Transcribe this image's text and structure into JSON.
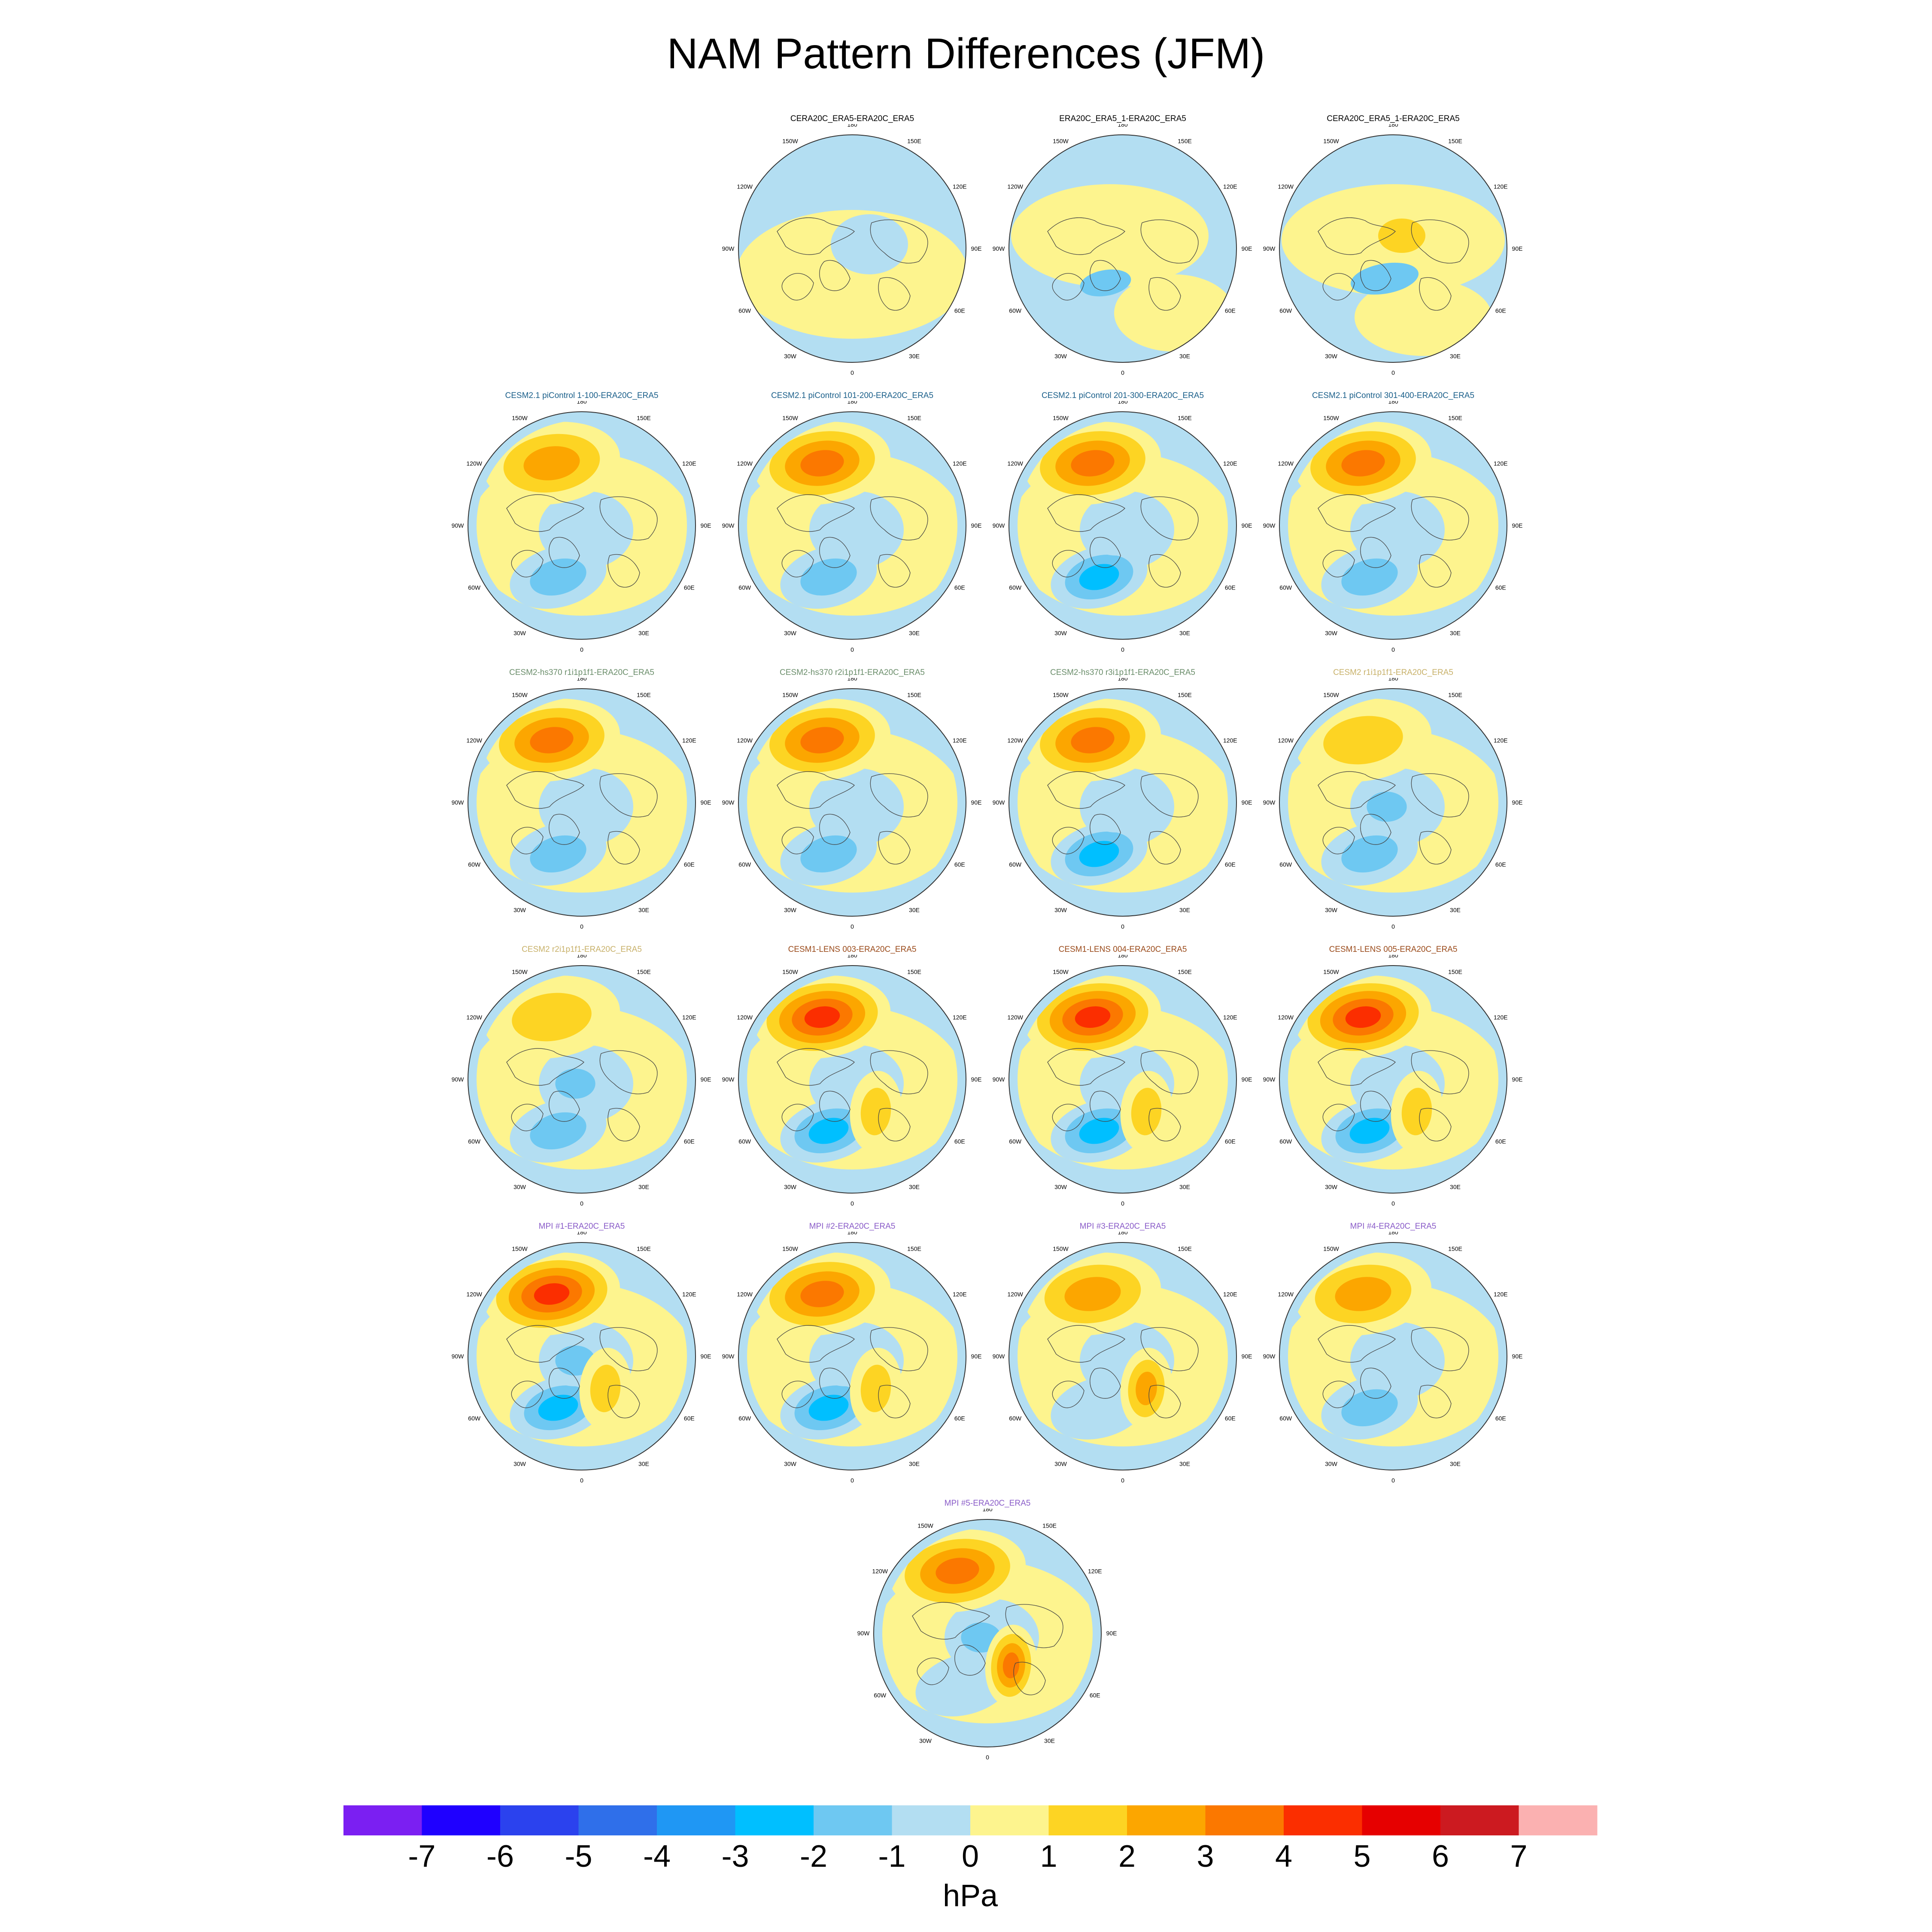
{
  "title": "NAM Pattern Differences (JFM)",
  "lon_labels": [
    "180",
    "150E",
    "120E",
    "90E",
    "60E",
    "30E",
    "0",
    "30W",
    "60W",
    "90W",
    "120W",
    "150W"
  ],
  "title_colors": {
    "obs": "#000000",
    "cesm21": "#1a5f8a",
    "hs370": "#6b8e6b",
    "cesm2": "#c8b16a",
    "lens": "#9a4a1a",
    "mpi": "#8a5cc8"
  },
  "panels": [
    {
      "title": "CERA20C_ERA5-ERA20C_ERA5",
      "group": "obs",
      "pattern": "obs1"
    },
    {
      "title": "ERA20C_ERA5_1-ERA20C_ERA5",
      "group": "obs",
      "pattern": "obs2"
    },
    {
      "title": "CERA20C_ERA5_1-ERA20C_ERA5",
      "group": "obs",
      "pattern": "obs3"
    },
    {
      "title": "CESM2.1 piControl 1-100-ERA20C_ERA5",
      "group": "cesm21",
      "pattern": "model",
      "h": 3,
      "a": -2,
      "b": 0,
      "c": 0
    },
    {
      "title": "CESM2.1 piControl 101-200-ERA20C_ERA5",
      "group": "cesm21",
      "pattern": "model",
      "h": 4,
      "a": -2,
      "b": -1,
      "c": 0
    },
    {
      "title": "CESM2.1 piControl 201-300-ERA20C_ERA5",
      "group": "cesm21",
      "pattern": "model",
      "h": 4,
      "a": -3,
      "b": -1,
      "c": 0
    },
    {
      "title": "CESM2.1 piControl 301-400-ERA20C_ERA5",
      "group": "cesm21",
      "pattern": "model",
      "h": 4,
      "a": -2,
      "b": -1,
      "c": 0
    },
    {
      "title": "CESM2-hs370 r1i1p1f1-ERA20C_ERA5",
      "group": "hs370",
      "pattern": "model",
      "h": 4,
      "a": -2,
      "b": 0,
      "c": 0
    },
    {
      "title": "CESM2-hs370 r2i1p1f1-ERA20C_ERA5",
      "group": "hs370",
      "pattern": "model",
      "h": 4,
      "a": -2,
      "b": -1,
      "c": 0
    },
    {
      "title": "CESM2-hs370 r3i1p1f1-ERA20C_ERA5",
      "group": "hs370",
      "pattern": "model",
      "h": 4,
      "a": -3,
      "b": -1,
      "c": 0
    },
    {
      "title": "CESM2 r1i1p1f1-ERA20C_ERA5",
      "group": "cesm2",
      "pattern": "model",
      "h": 2,
      "a": -2,
      "b": -2,
      "c": 0
    },
    {
      "title": "CESM2 r2i1p1f1-ERA20C_ERA5",
      "group": "cesm2",
      "pattern": "model",
      "h": 2,
      "a": -2,
      "b": -2,
      "c": 0
    },
    {
      "title": "CESM1-LENS 003-ERA20C_ERA5",
      "group": "lens",
      "pattern": "model",
      "h": 5,
      "a": -3,
      "b": 0,
      "c": 2
    },
    {
      "title": "CESM1-LENS 004-ERA20C_ERA5",
      "group": "lens",
      "pattern": "model",
      "h": 5,
      "a": -3,
      "b": 0,
      "c": 2
    },
    {
      "title": "CESM1-LENS 005-ERA20C_ERA5",
      "group": "lens",
      "pattern": "model",
      "h": 5,
      "a": -3,
      "b": 0,
      "c": 2
    },
    {
      "title": "MPI #1-ERA20C_ERA5",
      "group": "mpi",
      "pattern": "model",
      "h": 5,
      "a": -3,
      "b": -2,
      "c": 2
    },
    {
      "title": "MPI #2-ERA20C_ERA5",
      "group": "mpi",
      "pattern": "model",
      "h": 4,
      "a": -3,
      "b": -1,
      "c": 2
    },
    {
      "title": "MPI #3-ERA20C_ERA5",
      "group": "mpi",
      "pattern": "model",
      "h": 3,
      "a": -1,
      "b": -1,
      "c": 3
    },
    {
      "title": "MPI #4-ERA20C_ERA5",
      "group": "mpi",
      "pattern": "model",
      "h": 3,
      "a": -2,
      "b": -1,
      "c": 0
    },
    {
      "title": "MPI #5-ERA20C_ERA5",
      "group": "mpi",
      "pattern": "model",
      "h": 4,
      "a": -1,
      "b": -2,
      "c": 4
    }
  ],
  "colorbar": {
    "levels": [
      "-7",
      "-6",
      "-5",
      "-4",
      "-3",
      "-2",
      "-1",
      "0",
      "1",
      "2",
      "3",
      "4",
      "5",
      "6",
      "7"
    ],
    "colors": [
      "#7b1ff2",
      "#1f00ff",
      "#2b42ee",
      "#2f6fea",
      "#1f97f4",
      "#00bfff",
      "#6ec8f2",
      "#b3def2",
      "#fdf48e",
      "#fdd423",
      "#fca600",
      "#fb7800",
      "#fb2e00",
      "#e60000",
      "#cc1a20",
      "#fbb1b1"
    ],
    "unit": "hPa"
  }
}
